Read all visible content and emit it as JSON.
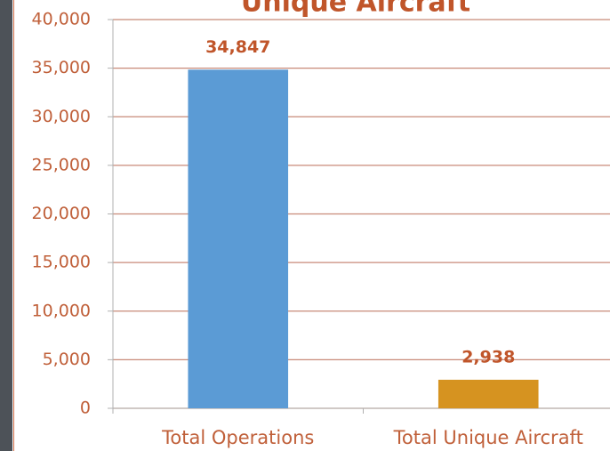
{
  "chart_data": {
    "type": "bar",
    "title": "Unique Aircraft",
    "categories": [
      "Total Operations",
      "Total Unique Aircraft"
    ],
    "values": [
      34847,
      2938
    ],
    "value_labels": [
      "34,847",
      "2,938"
    ],
    "colors": [
      "#5b9bd5",
      "#d69320"
    ],
    "ylim": [
      0,
      40000
    ],
    "yticks": [
      0,
      {
        "value": 5000,
        "label": "5,000"
      },
      {
        "value": 10000,
        "label": "10,000"
      },
      {
        "value": 15000,
        "label": "15,000"
      },
      {
        "value": 20000,
        "label": "20,000"
      },
      {
        "value": 25000,
        "label": "25,000"
      },
      {
        "value": 30000,
        "label": "30,000"
      },
      {
        "value": 35000,
        "label": "35,000"
      },
      {
        "value": 40000,
        "label": "40,000"
      }
    ],
    "grid": true
  }
}
